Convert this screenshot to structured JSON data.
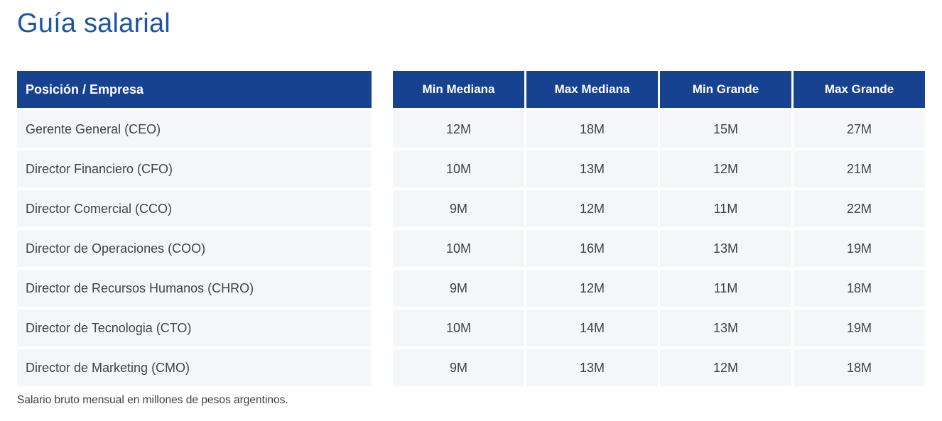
{
  "title": "Guía salarial",
  "table": {
    "position_header": "Posición / Empresa",
    "value_headers": [
      "Min Mediana",
      "Max Mediana",
      "Min Grande",
      "Max Grande"
    ],
    "rows": [
      {
        "position": "Gerente General (CEO)",
        "values": [
          "12M",
          "18M",
          "15M",
          "27M"
        ]
      },
      {
        "position": "Director Financiero (CFO)",
        "values": [
          "10M",
          "13M",
          "12M",
          "21M"
        ]
      },
      {
        "position": "Director Comercial (CCO)",
        "values": [
          "9M",
          "12M",
          "11M",
          "22M"
        ]
      },
      {
        "position": "Director de Operaciones (COO)",
        "values": [
          "10M",
          "16M",
          "13M",
          "19M"
        ]
      },
      {
        "position": "Director de Recursos Humanos (CHRO)",
        "values": [
          "9M",
          "12M",
          "11M",
          "18M"
        ]
      },
      {
        "position": "Director de Tecnologia (CTO)",
        "values": [
          "10M",
          "14M",
          "13M",
          "19M"
        ]
      },
      {
        "position": "Director de Marketing (CMO)",
        "values": [
          "9M",
          "13M",
          "12M",
          "18M"
        ]
      }
    ]
  },
  "footnote": "Salario bruto mensual en millones de pesos argentinos.",
  "colors": {
    "title_color": "#1D55A5",
    "header_bg": "#17428F",
    "header_text": "#FFFFFF",
    "row_bg": "#F4F6F9",
    "row_text": "#3F4347",
    "footnote_text": "#3A3D42",
    "page_bg": "#FFFFFF"
  }
}
